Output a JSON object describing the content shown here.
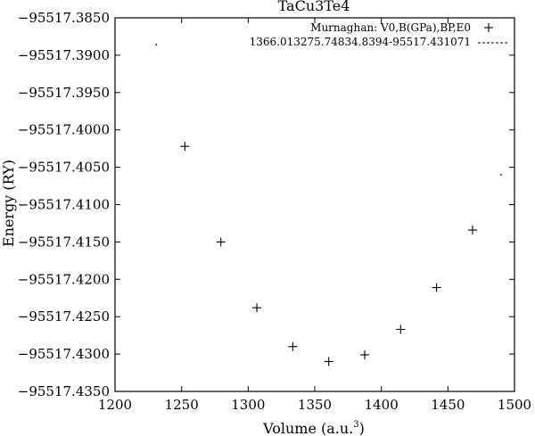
{
  "chart_data": {
    "type": "scatter",
    "title": "TaCu3Te4",
    "xlabel": "Volume (a.u.",
    "xlabel_sup": "3",
    "xlabel_end": ")",
    "ylabel": "Energy (RY)",
    "xlim": [
      1200,
      1500
    ],
    "ylim": [
      -95517.435,
      -95517.385
    ],
    "xticks": [
      1200,
      1250,
      1300,
      1350,
      1400,
      1450,
      1500
    ],
    "xtick_labels": [
      "1200",
      "1250",
      "1300",
      "1350",
      "1400",
      "1450",
      "1500"
    ],
    "yticks": [
      -95517.385,
      -95517.39,
      -95517.395,
      -95517.4,
      -95517.405,
      -95517.41,
      -95517.415,
      -95517.42,
      -95517.425,
      -95517.43,
      -95517.435
    ],
    "ytick_labels": [
      "−95517.3850",
      "−95517.3900",
      "−95517.3950",
      "−95517.4000",
      "−95517.4050",
      "−95517.4100",
      "−95517.4150",
      "−95517.4200",
      "−95517.4250",
      "−95517.4300",
      "−95517.4350"
    ],
    "legend_position": "top-right",
    "series": [
      {
        "name": "Murnaghan: V0,B(GPa),BP,E0",
        "marker": "plus",
        "color": "#000000",
        "x": [
          1252.5,
          1279.5,
          1306.5,
          1333.5,
          1360.5,
          1387.5,
          1414.5,
          1441.5,
          1468.5
        ],
        "y": [
          -95517.4022,
          -95517.415,
          -95517.4238,
          -95517.429,
          -95517.431,
          -95517.4301,
          -95517.4267,
          -95517.4211,
          -95517.4134
        ]
      },
      {
        "name": "1366.013275.74834.8394-95517.431071",
        "marker": "dashed-line",
        "color": "#000000",
        "x": [
          1231,
          1490
        ],
        "y": [
          -95517.3886,
          -95517.406
        ]
      }
    ]
  }
}
